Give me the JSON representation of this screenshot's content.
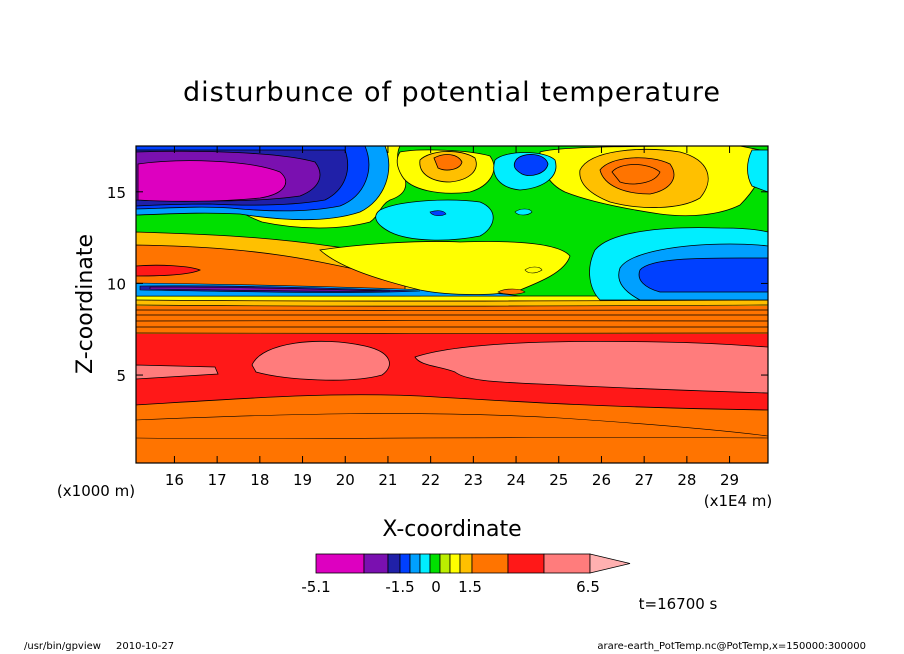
{
  "chart_data": {
    "type": "heatmap",
    "title": "disturbunce of potential temperature",
    "xlabel": "X-coordinate",
    "ylabel": "Z-coordinate",
    "x_unit_left": "(x1000 m)",
    "x_unit_right": "(x1E4 m)",
    "xlim": [
      15.1,
      29.9
    ],
    "ylim": [
      0.2,
      17.5
    ],
    "x_ticks": [
      "16",
      "17",
      "18",
      "19",
      "20",
      "21",
      "22",
      "23",
      "24",
      "25",
      "26",
      "27",
      "28",
      "29"
    ],
    "y_ticks": [
      "5",
      "10",
      "15"
    ],
    "colorbar": {
      "labels": [
        "-5.1",
        "-1.5",
        "0",
        "1.5",
        "6.5"
      ],
      "label_values": [
        -5.1,
        -1.5,
        0,
        1.5,
        6.5
      ],
      "colors": [
        "#dd00c0",
        "#7a10b0",
        "#2020a8",
        "#0040ff",
        "#00a0ff",
        "#00eeff",
        "#00e000",
        "#bbee00",
        "#ffff00",
        "#ffc000",
        "#ff7400",
        "#ff1818",
        "#ff7c7c"
      ],
      "extend_color": "#ffb0b0"
    },
    "time_label": "t=16700 s"
  },
  "footer": {
    "program": "/usr/bin/gpview",
    "date": "2010-10-27",
    "source": "arare-earth_PotTemp.nc@PotTemp,x=150000:300000"
  }
}
